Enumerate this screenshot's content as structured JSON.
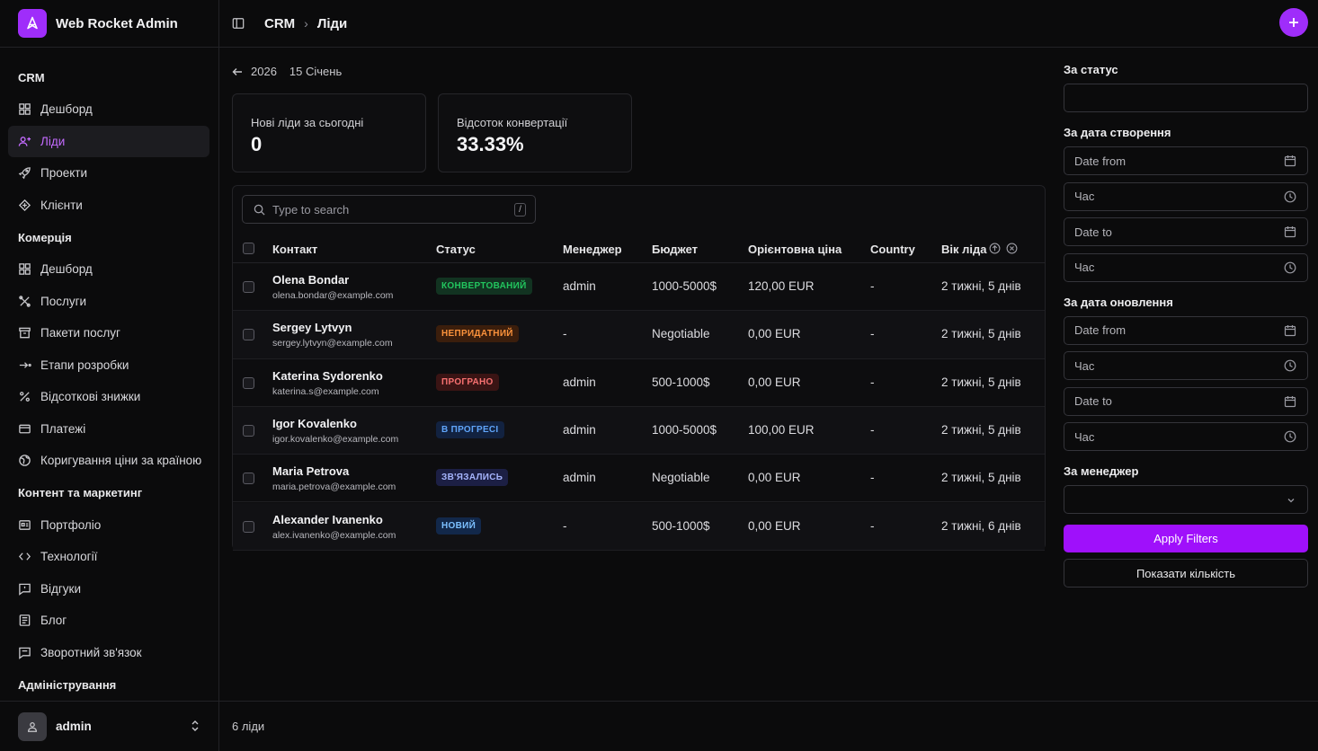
{
  "app": {
    "name": "Web Rocket Admin"
  },
  "sidebar": {
    "groups": [
      {
        "label": "CRM",
        "items": [
          {
            "label": "Дешборд",
            "icon": "dashboard-icon"
          },
          {
            "label": "Ліди",
            "icon": "users-icon",
            "active": true
          },
          {
            "label": "Проекти",
            "icon": "rocket-icon"
          },
          {
            "label": "Клієнти",
            "icon": "handshake-icon"
          }
        ]
      },
      {
        "label": "Комерція",
        "items": [
          {
            "label": "Дешборд",
            "icon": "dashboard-icon"
          },
          {
            "label": "Послуги",
            "icon": "tools-icon"
          },
          {
            "label": "Пакети послуг",
            "icon": "package-icon"
          },
          {
            "label": "Етапи розробки",
            "icon": "steps-icon"
          },
          {
            "label": "Відсоткові знижки",
            "icon": "percent-icon"
          },
          {
            "label": "Платежі",
            "icon": "credit-card-icon"
          },
          {
            "label": "Коригування ціни за країною",
            "icon": "globe-icon"
          }
        ]
      },
      {
        "label": "Контент та маркетинг",
        "items": [
          {
            "label": "Портфоліо",
            "icon": "portfolio-icon"
          },
          {
            "label": "Технології",
            "icon": "code-icon"
          },
          {
            "label": "Відгуки",
            "icon": "review-icon"
          },
          {
            "label": "Блог",
            "icon": "blog-icon"
          },
          {
            "label": "Зворотний зв'язок",
            "icon": "feedback-icon"
          }
        ]
      },
      {
        "label": "Адміністрування",
        "items": []
      }
    ],
    "user": {
      "name": "admin"
    }
  },
  "header": {
    "breadcrumb": [
      "CRM",
      "Ліди"
    ]
  },
  "date_nav": {
    "year": "2026",
    "day": "15 Січень"
  },
  "stats": [
    {
      "label": "Нові ліди за сьогодні",
      "value": "0"
    },
    {
      "label": "Відсоток конвертації",
      "value": "33.33%"
    }
  ],
  "table": {
    "search_placeholder": "Type to search",
    "shortcut": "/",
    "columns": [
      "Контакт",
      "Статус",
      "Менеджер",
      "Бюджет",
      "Орієнтовна ціна",
      "Country",
      "Вік ліда"
    ],
    "rows": [
      {
        "name": "Olena Bondar",
        "email": "olena.bondar@example.com",
        "status": "КОНВЕРТОВАНИЙ",
        "status_color": "#22c55e",
        "manager": "admin",
        "budget": "1000-5000$",
        "price": "120,00 EUR",
        "country": "-",
        "age": "2 тижні, 5 днів"
      },
      {
        "name": "Sergey Lytvyn",
        "email": "sergey.lytvyn@example.com",
        "status": "НЕПРИДАТНИЙ",
        "status_color": "#f97316",
        "manager": "-",
        "budget": "Negotiable",
        "price": "0,00 EUR",
        "country": "-",
        "age": "2 тижні, 5 днів"
      },
      {
        "name": "Katerina Sydorenko",
        "email": "katerina.s@example.com",
        "status": "ПРОГРАНО",
        "status_color": "#ef4444",
        "manager": "admin",
        "budget": "500-1000$",
        "price": "0,00 EUR",
        "country": "-",
        "age": "2 тижні, 5 днів"
      },
      {
        "name": "Igor Kovalenko",
        "email": "igor.kovalenko@example.com",
        "status": "В ПРОГРЕСІ",
        "status_color": "#60a5fa",
        "manager": "admin",
        "budget": "1000-5000$",
        "price": "100,00 EUR",
        "country": "-",
        "age": "2 тижні, 5 днів"
      },
      {
        "name": "Maria Petrova",
        "email": "maria.petrova@example.com",
        "status": "ЗВ'ЯЗАЛИСЬ",
        "status_color": "#818cf8",
        "manager": "admin",
        "budget": "Negotiable",
        "price": "0,00 EUR",
        "country": "-",
        "age": "2 тижні, 5 днів"
      },
      {
        "name": "Alexander Ivanenko",
        "email": "alex.ivanenko@example.com",
        "status": "НОВИЙ",
        "status_color": "#60a5fa",
        "manager": "-",
        "budget": "500-1000$",
        "price": "0,00 EUR",
        "country": "-",
        "age": "2 тижні, 6 днів"
      }
    ]
  },
  "filters": {
    "status_label": "За статус",
    "created_label": "За дата створення",
    "updated_label": "За дата оновлення",
    "manager_label": "За менеджер",
    "date_from": "Date from",
    "date_to": "Date to",
    "time": "Час",
    "apply": "Apply Filters",
    "show_count": "Показати кількість"
  },
  "footer": {
    "count": "6 ліди"
  },
  "colors": {
    "accent": "#9f2dfa",
    "background": "#0b0b0c"
  }
}
